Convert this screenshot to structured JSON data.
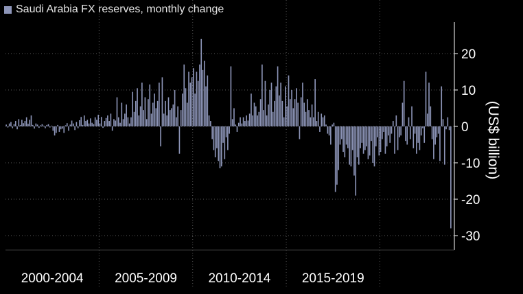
{
  "chart_data": {
    "type": "bar",
    "title": "",
    "xlabel": "",
    "ylabel": "(US$ billion)",
    "ylim": [
      -33,
      29
    ],
    "y_ticks": [
      20,
      10,
      0,
      -10,
      -20,
      -30
    ],
    "y_tick_labels": [
      "20",
      "10",
      "0",
      "-10",
      "-20",
      "-30"
    ],
    "grid": "horizontal dotted",
    "legend": {
      "position": "top-left"
    },
    "colors": {
      "bar": "#8d95b8",
      "background": "#000000",
      "grid": "#5a5a5a",
      "axis": "#ffffff"
    },
    "period_labels": [
      "2000-2004",
      "2005-2009",
      "2010-2014",
      "2015-2019"
    ],
    "series": [
      {
        "name": "Saudi Arabia FX reserves, monthly change",
        "values": [
          0.5,
          -0.3,
          0.8,
          1.2,
          -0.5,
          0.6,
          1.5,
          -0.8,
          2.0,
          0.4,
          1.8,
          0.9,
          1.5,
          2.5,
          0.7,
          1.8,
          3.0,
          0.4,
          -0.6,
          0.8,
          0.5,
          -0.4,
          0.3,
          0.6,
          0.2,
          -0.5,
          0.4,
          0.6,
          -0.3,
          0.2,
          -1.2,
          -2.5,
          -1.8,
          0.4,
          -1.5,
          -0.8,
          -0.6,
          -1.8,
          0.3,
          0.9,
          -1.2,
          0.5,
          1.6,
          0.8,
          -1.0,
          1.2,
          -0.5,
          1.7,
          2.6,
          0.4,
          3.0,
          1.5,
          1.8,
          0.8,
          2.2,
          1.0,
          0.6,
          2.5,
          1.8,
          3.2,
          0.8,
          2.6,
          -0.4,
          1.5,
          2.3,
          3.0,
          1.5,
          3.5,
          -1.2,
          2.0,
          1.6,
          8.0,
          2.5,
          1.0,
          6.5,
          2.0,
          3.5,
          6.0,
          2.5,
          0.8,
          2.5,
          9.5,
          4.0,
          7.0,
          10.5,
          3.0,
          5.5,
          12.0,
          4.5,
          8.0,
          2.0,
          7.5,
          11.5,
          3.5,
          6.5,
          9.0,
          5.0,
          7.0,
          12.0,
          -5.5,
          13.5,
          3.5,
          7.0,
          3.0,
          8.0,
          4.5,
          5.0,
          6.0,
          10.0,
          2.5,
          5.5,
          -7.5,
          4.5,
          9.0,
          17.0,
          10.5,
          6.5,
          15.0,
          12.0,
          13.5,
          16.0,
          9.0,
          15.0,
          12.5,
          17.0,
          24.0,
          15.5,
          18.0,
          11.0,
          14.0,
          3.0,
          1.5,
          -3.5,
          -6.5,
          -8.5,
          -6.0,
          -9.5,
          -11.5,
          -11.0,
          -4.5,
          -9.0,
          -3.0,
          -6.5,
          -2.0,
          16.5,
          2.0,
          5.0,
          0.5,
          -1.5,
          1.0,
          2.5,
          0.8,
          2.5,
          1.5,
          3.0,
          1.6,
          3.5,
          9.0,
          3.0,
          6.5,
          5.5,
          3.0,
          4.0,
          7.5,
          17.0,
          4.5,
          12.5,
          3.0,
          6.0,
          10.0,
          12.0,
          4.0,
          7.0,
          11.0,
          16.5,
          8.5,
          12.0,
          7.0,
          2.5,
          11.0,
          5.5,
          14.0,
          7.5,
          10.0,
          5.0,
          7.5,
          10.5,
          6.5,
          -3.5,
          8.0,
          12.0,
          6.5,
          4.0,
          7.5,
          4.5,
          2.5,
          6.0,
          2.5,
          13.0,
          1.5,
          4.0,
          -1.5,
          3.5,
          2.5,
          3.0,
          0.5,
          -2.0,
          -2.5,
          -5.0,
          0.5,
          1.0,
          -18.0,
          -16.0,
          -12.0,
          -5.0,
          -3.5,
          -7.0,
          -8.5,
          -5.0,
          -6.0,
          -10.5,
          -11.0,
          -6.5,
          -13.5,
          -19.0,
          -8.5,
          -10.5,
          -6.0,
          -4.5,
          -7.5,
          -6.5,
          -5.5,
          -9.0,
          -8.0,
          -4.0,
          -10.0,
          -11.0,
          -5.5,
          -3.0,
          -8.0,
          -7.0,
          -3.5,
          -1.5,
          -7.5,
          -5.5,
          -2.5,
          -4.5,
          -2.0,
          1.5,
          -7.5,
          3.0,
          -6.5,
          -3.0,
          -2.5,
          6.5,
          12.5,
          -4.0,
          -5.0,
          2.5,
          -3.5,
          5.5,
          -6.0,
          -2.0,
          -7.5,
          -4.5,
          -6.5,
          -2.5,
          -0.5,
          -4.5,
          15.0,
          3.5,
          12.0,
          5.5,
          -3.5,
          -9.0,
          -5.0,
          -3.0,
          -2.0,
          -9.5,
          11.0,
          2.0,
          -10.5,
          -0.8,
          2.5,
          -1.0,
          -28.0
        ]
      }
    ]
  }
}
